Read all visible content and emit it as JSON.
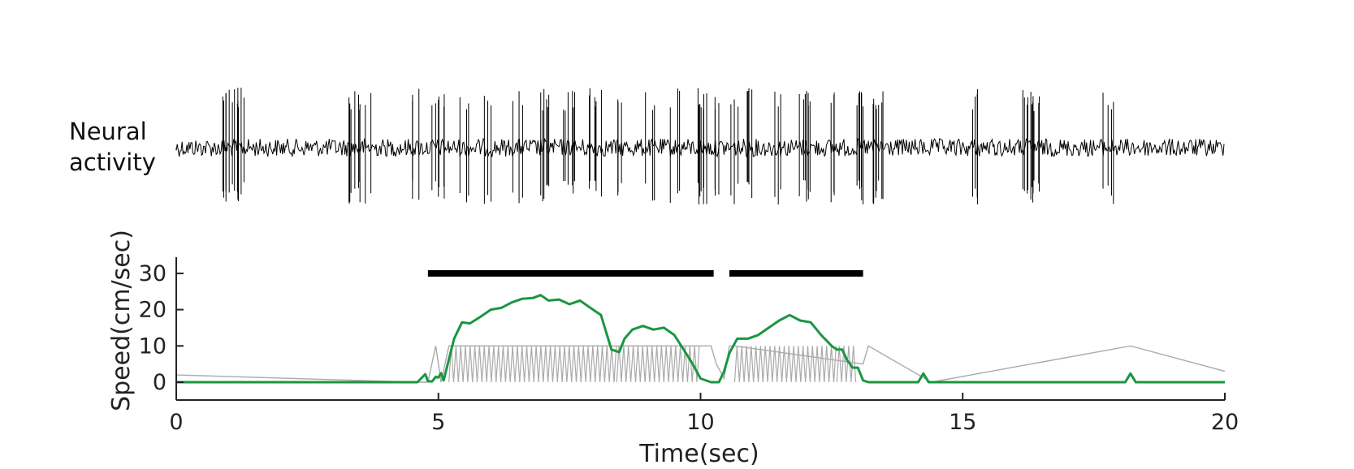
{
  "neural_label": [
    "Neural",
    "activity"
  ],
  "chart_data": {
    "type": "line",
    "xlabel": "Time(sec)",
    "ylabel": "Speed(cm/sec)",
    "xlim": [
      0,
      20
    ],
    "ylim": [
      -5,
      35
    ],
    "xticks": [
      0,
      5,
      10,
      15,
      20
    ],
    "yticks": [
      0,
      10,
      20,
      30
    ],
    "grid": false,
    "legend": "none",
    "colors": {
      "speed": "#1a9641",
      "raw": "#aaaaaa",
      "spikes": "#000000",
      "bars": "#000000"
    },
    "speed_series": {
      "x": [
        0,
        4.6,
        4.75,
        4.8,
        4.88,
        4.95,
        5.0,
        5.05,
        5.1,
        5.3,
        5.45,
        5.6,
        5.8,
        6.0,
        6.2,
        6.4,
        6.6,
        6.8,
        6.95,
        7.1,
        7.3,
        7.5,
        7.7,
        7.9,
        8.1,
        8.3,
        8.45,
        8.55,
        8.7,
        8.9,
        9.1,
        9.3,
        9.5,
        9.7,
        9.85,
        10.0,
        10.2,
        10.35,
        10.45,
        10.55,
        10.7,
        10.9,
        11.1,
        11.3,
        11.5,
        11.7,
        11.9,
        12.1,
        12.3,
        12.5,
        12.6,
        12.7,
        12.8,
        12.9,
        13.0,
        13.1,
        13.2,
        14.15,
        14.25,
        14.35,
        14.45,
        18.1,
        18.2,
        18.3,
        20
      ],
      "y": [
        0,
        0,
        2.2,
        0.3,
        0.2,
        1.5,
        1.3,
        2.5,
        0.5,
        12,
        16.5,
        16.2,
        18,
        20,
        20.5,
        22,
        23,
        23.2,
        24,
        22.5,
        22.8,
        21.5,
        22.5,
        20.5,
        18.5,
        9,
        8.3,
        12,
        14.5,
        15.5,
        14.5,
        15,
        13,
        8.5,
        5,
        1,
        0,
        0,
        3,
        8,
        12,
        12,
        13,
        15,
        17,
        18.5,
        17,
        16.5,
        13,
        10,
        9,
        9,
        6,
        4,
        4,
        0.5,
        0,
        0,
        2.4,
        0,
        0,
        0,
        2.4,
        0,
        0
      ]
    },
    "raw_series": {
      "x": [
        0,
        4.6,
        4.8,
        4.95,
        5.05,
        5.2,
        10.2,
        10.3,
        10.45,
        10.55,
        10.65,
        13.1,
        13.2,
        14.4,
        18.2,
        20
      ],
      "y": [
        2,
        0,
        0,
        10,
        0,
        10,
        10,
        5,
        1,
        10,
        10,
        5,
        10,
        0,
        10,
        3
      ],
      "oscillation_ranges": [
        [
          5.2,
          8.4
        ],
        [
          8.4,
          10.0
        ],
        [
          10.65,
          12.6
        ],
        [
          12.6,
          13.0
        ]
      ],
      "oscillation_band": [
        0,
        10
      ]
    },
    "annotation_bars": [
      {
        "x_start": 4.8,
        "x_end": 10.25,
        "y": 30
      },
      {
        "x_start": 10.55,
        "x_end": 13.1,
        "y": 30
      }
    ],
    "neural_activity": {
      "burst_times_sec": [
        1.0,
        1.2,
        3.4,
        3.6,
        4.6,
        5.0,
        5.5,
        6.0,
        6.5,
        7.0,
        7.5,
        8.0,
        8.5,
        9.0,
        9.5,
        10.0,
        10.3,
        10.6,
        11.0,
        11.5,
        12.0,
        12.5,
        13.0,
        13.4,
        15.2,
        16.2,
        16.4,
        17.8
      ]
    }
  }
}
